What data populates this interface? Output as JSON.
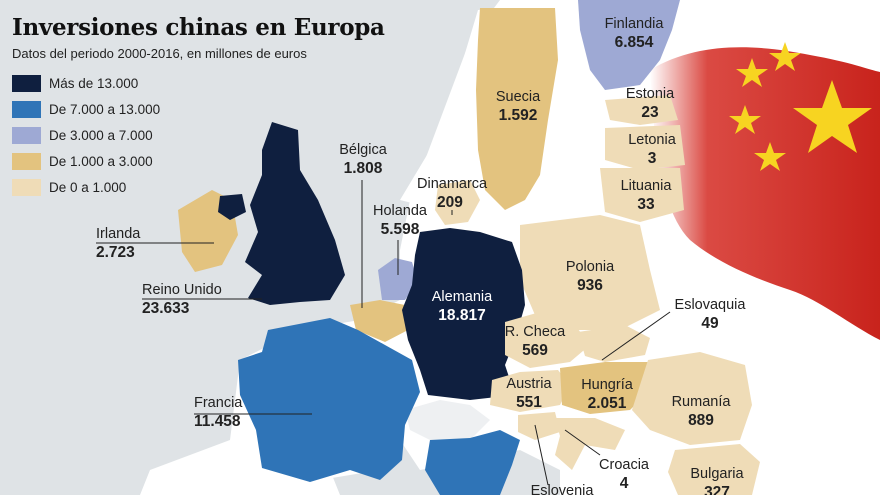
{
  "header": {
    "title": "Inversiones chinas en Europa",
    "subtitle": "Datos del periodo 2000-2016, en millones de euros"
  },
  "colors": {
    "sea": "#dfe3e6",
    "other_land": "#ffffff",
    "flag_red": "#d42a22",
    "flag_star": "#f7d421"
  },
  "legend": [
    {
      "label": "Más de 13.000",
      "color": "#0f1f3f"
    },
    {
      "label": "De 7.000 a 13.000",
      "color": "#2f74b7"
    },
    {
      "label": "De 3.000 a 7.000",
      "color": "#9ea9d4"
    },
    {
      "label": "De 1.000 a 3.000",
      "color": "#e3c37f"
    },
    {
      "label": "De 0 a 1.000",
      "color": "#efdcb7"
    }
  ],
  "countries": [
    {
      "name": "Finlandia",
      "value": "6.854"
    },
    {
      "name": "Suecia",
      "value": "1.592"
    },
    {
      "name": "Estonia",
      "value": "23"
    },
    {
      "name": "Letonia",
      "value": "3"
    },
    {
      "name": "Lituania",
      "value": "33"
    },
    {
      "name": "Bélgica",
      "value": "1.808"
    },
    {
      "name": "Dinamarca",
      "value": "209"
    },
    {
      "name": "Holanda",
      "value": "5.598"
    },
    {
      "name": "Irlanda",
      "value": "2.723"
    },
    {
      "name": "Polonia",
      "value": "936"
    },
    {
      "name": "Alemania",
      "value": "18.817"
    },
    {
      "name": "Reino Unido",
      "value": "23.633"
    },
    {
      "name": "Eslovaquia",
      "value": "49"
    },
    {
      "name": "R. Checa",
      "value": "569"
    },
    {
      "name": "Hungría",
      "value": "2.051"
    },
    {
      "name": "Austria",
      "value": "551"
    },
    {
      "name": "Rumanía",
      "value": "889"
    },
    {
      "name": "Francia",
      "value": "11.458"
    },
    {
      "name": "Croacia",
      "value": "4"
    },
    {
      "name": "Bulgaria",
      "value": "327"
    },
    {
      "name": "Eslovenia",
      "value": ""
    }
  ]
}
